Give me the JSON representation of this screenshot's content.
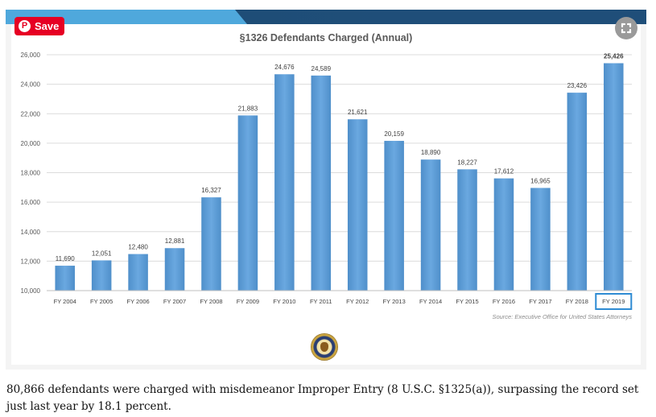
{
  "pin_button": {
    "label": "Save",
    "icon": "pinterest-icon"
  },
  "expand_button": {
    "icon": "expand-icon"
  },
  "chart_data": {
    "type": "bar",
    "title": "§1326 Defendants Charged (Annual)",
    "xlabel": "",
    "ylabel": "",
    "categories": [
      "FY 2004",
      "FY 2005",
      "FY 2006",
      "FY 2007",
      "FY 2008",
      "FY 2009",
      "FY 2010",
      "FY 2011",
      "FY 2012",
      "FY 2013",
      "FY 2014",
      "FY 2015",
      "FY 2016",
      "FY 2017",
      "FY 2018",
      "FY 2019"
    ],
    "values": [
      11690,
      12051,
      12480,
      12881,
      16327,
      21883,
      24676,
      24589,
      21621,
      20159,
      18890,
      18227,
      17612,
      16965,
      23426,
      25426
    ],
    "data_labels": [
      "11,690",
      "12,051",
      "12,480",
      "12,881",
      "16,327",
      "21,883",
      "24,676",
      "24,589",
      "21,621",
      "20,159",
      "18,890",
      "18,227",
      "17,612",
      "16,965",
      "23,426",
      "25,426"
    ],
    "ylim": [
      10000,
      26000
    ],
    "yticks": [
      10000,
      12000,
      14000,
      16000,
      18000,
      20000,
      22000,
      24000,
      26000
    ],
    "ytick_labels": [
      "10,000",
      "12,000",
      "14,000",
      "16,000",
      "18,000",
      "20,000",
      "22,000",
      "24,000",
      "26,000"
    ],
    "grid": true,
    "legend": "none",
    "highlighted_category": "FY 2019",
    "source": "Source: Executive Office for United States Attorneys",
    "colors": {
      "bar": "#5b9bd5",
      "highlight_box": "#2e8bd3",
      "gridline": "#dcdcdc"
    }
  },
  "seal": {
    "icon": "doj-seal-icon"
  },
  "caption": "80,866 defendants were charged with misdemeanor Improper Entry (8 U.S.C. §1325(a)), surpassing the record set just last year by 18.1 percent."
}
